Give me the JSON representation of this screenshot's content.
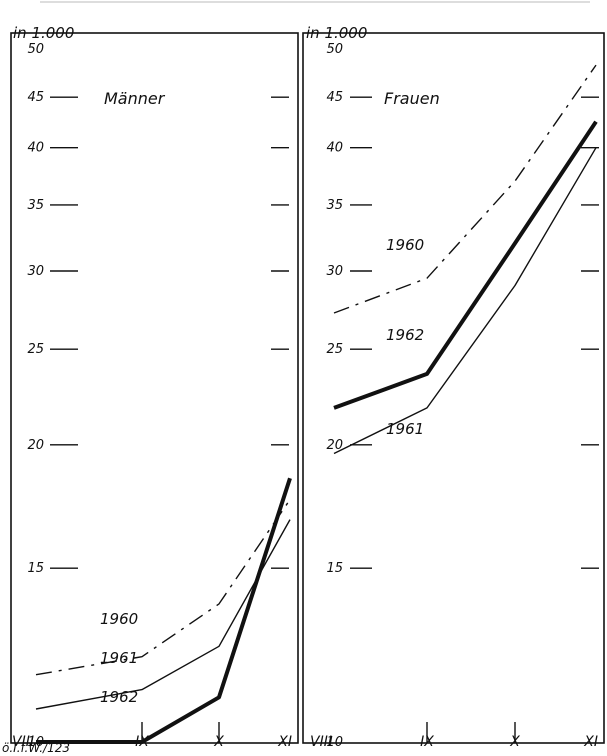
{
  "chart_data": [
    {
      "type": "line",
      "title": "Männer",
      "unit_label": "in 1.000",
      "y_scale": "log",
      "ylim": [
        10,
        50
      ],
      "yticks": [
        10,
        15,
        20,
        25,
        30,
        35,
        40,
        45,
        50
      ],
      "categories": [
        "VIII",
        "IX",
        "X",
        "XI"
      ],
      "series": [
        {
          "name": "1960",
          "style": "dash-dot-dash",
          "stroke_width": "thin",
          "values": [
            11.7,
            12.2,
            13.8,
            17.6
          ]
        },
        {
          "name": "1961",
          "style": "solid",
          "stroke_width": "thin",
          "values": [
            10.8,
            11.3,
            12.5,
            16.8
          ]
        },
        {
          "name": "1962",
          "style": "solid",
          "stroke_width": "thick",
          "values": [
            10.0,
            10.0,
            11.1,
            18.5
          ]
        }
      ]
    },
    {
      "type": "line",
      "title": "Frauen",
      "unit_label": "in 1.000",
      "y_scale": "log",
      "ylim": [
        10,
        50
      ],
      "yticks": [
        10,
        15,
        20,
        25,
        30,
        35,
        40,
        45,
        50
      ],
      "categories": [
        "VIII",
        "IX",
        "X",
        "XI"
      ],
      "series": [
        {
          "name": "1960",
          "style": "dash-dot-dash",
          "stroke_width": "thin",
          "values": [
            27.2,
            29.5,
            37.0,
            48.5
          ]
        },
        {
          "name": "1962",
          "style": "solid",
          "stroke_width": "thick",
          "values": [
            21.8,
            23.6,
            32.0,
            42.5
          ]
        },
        {
          "name": "1961",
          "style": "solid",
          "stroke_width": "thin",
          "values": [
            19.6,
            21.8,
            29.0,
            40.0
          ]
        }
      ]
    }
  ],
  "footer_text": "ö.I.f.W./123"
}
